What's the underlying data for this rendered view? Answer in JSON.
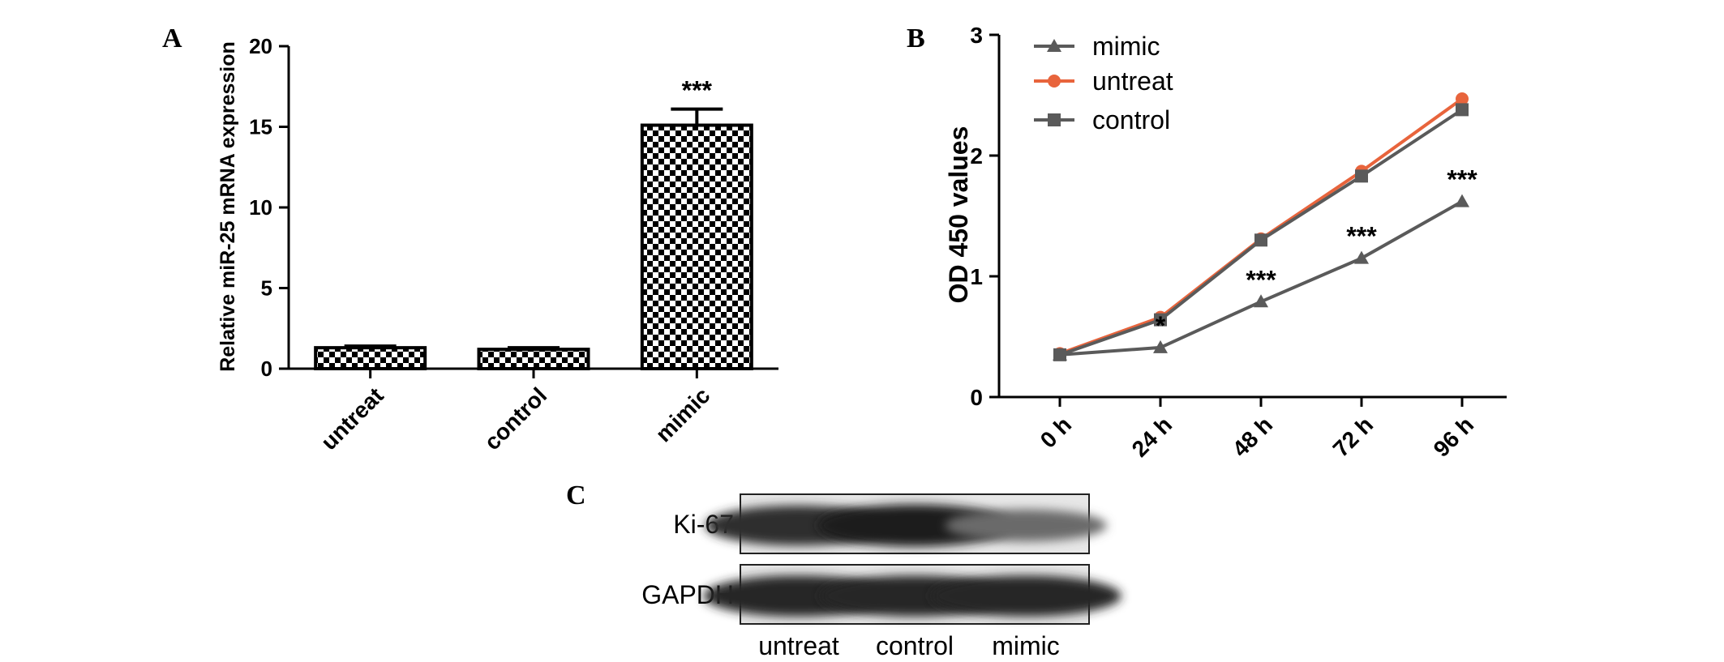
{
  "chart_data": [
    {
      "panel": "A",
      "type": "bar",
      "ylabel": "Relative miR-25 mRNA expression",
      "xlabel": "",
      "ylim": [
        0,
        20
      ],
      "yticks": [
        "0",
        "5",
        "10",
        "15",
        "20"
      ],
      "categories": [
        "untreat",
        "control",
        "mimic"
      ],
      "values": [
        1.3,
        1.2,
        15.1
      ],
      "errors": [
        0.1,
        0.1,
        1.0
      ],
      "annotations": [
        "",
        "",
        "***"
      ],
      "fill": "checkerboard",
      "grid": false
    },
    {
      "panel": "B",
      "type": "line",
      "ylabel": "OD 450 values",
      "xlabel": "",
      "ylim": [
        0,
        3
      ],
      "yticks": [
        "0",
        "1",
        "2",
        "3"
      ],
      "x": [
        "0 h",
        "24 h",
        "48 h",
        "72 h",
        "96 h"
      ],
      "series": [
        {
          "name": "mimic",
          "values": [
            0.35,
            0.41,
            0.79,
            1.15,
            1.62
          ],
          "color": "#5a5a5a",
          "marker": "triangle"
        },
        {
          "name": "untreat",
          "values": [
            0.36,
            0.66,
            1.31,
            1.87,
            2.47
          ],
          "color": "#e8643c",
          "marker": "circle"
        },
        {
          "name": "control",
          "values": [
            0.35,
            0.64,
            1.3,
            1.83,
            2.38
          ],
          "color": "#5a5a5a",
          "marker": "square"
        }
      ],
      "annotations": [
        "",
        "*",
        "***",
        "***",
        "***"
      ],
      "legend": "top-left",
      "grid": false
    },
    {
      "panel": "C",
      "type": "western-blot",
      "rows": [
        {
          "label": "Ki-67",
          "intensity": [
            0.9,
            1.0,
            0.55
          ]
        },
        {
          "label": "GAPDH",
          "intensity": [
            0.95,
            0.95,
            0.95
          ]
        }
      ],
      "lanes": [
        "untreat",
        "control",
        "mimic"
      ]
    }
  ],
  "panel_letters": [
    "A",
    "B",
    "C"
  ]
}
